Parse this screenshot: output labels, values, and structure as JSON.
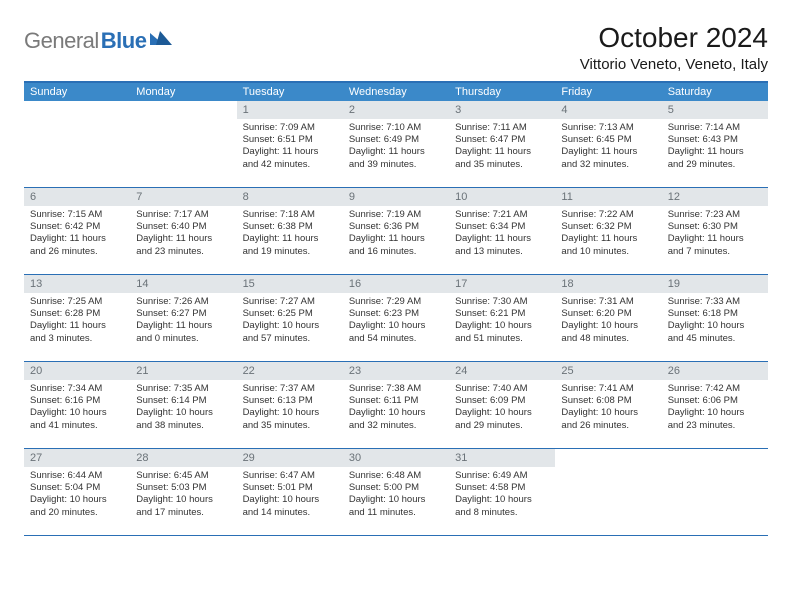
{
  "logo": {
    "gray": "General",
    "blue": "Blue"
  },
  "title": "October 2024",
  "location": "Vittorio Veneto, Veneto, Italy",
  "colors": {
    "accent": "#2a6fb5",
    "header_bg": "#3b89c9",
    "daynum_bg": "#e2e6e9",
    "daynum_fg": "#6a7278",
    "text": "#333333"
  },
  "weekdays": [
    "Sunday",
    "Monday",
    "Tuesday",
    "Wednesday",
    "Thursday",
    "Friday",
    "Saturday"
  ],
  "weeks": [
    [
      null,
      null,
      {
        "n": "1",
        "sunrise": "Sunrise: 7:09 AM",
        "sunset": "Sunset: 6:51 PM",
        "daylight": "Daylight: 11 hours and 42 minutes."
      },
      {
        "n": "2",
        "sunrise": "Sunrise: 7:10 AM",
        "sunset": "Sunset: 6:49 PM",
        "daylight": "Daylight: 11 hours and 39 minutes."
      },
      {
        "n": "3",
        "sunrise": "Sunrise: 7:11 AM",
        "sunset": "Sunset: 6:47 PM",
        "daylight": "Daylight: 11 hours and 35 minutes."
      },
      {
        "n": "4",
        "sunrise": "Sunrise: 7:13 AM",
        "sunset": "Sunset: 6:45 PM",
        "daylight": "Daylight: 11 hours and 32 minutes."
      },
      {
        "n": "5",
        "sunrise": "Sunrise: 7:14 AM",
        "sunset": "Sunset: 6:43 PM",
        "daylight": "Daylight: 11 hours and 29 minutes."
      }
    ],
    [
      {
        "n": "6",
        "sunrise": "Sunrise: 7:15 AM",
        "sunset": "Sunset: 6:42 PM",
        "daylight": "Daylight: 11 hours and 26 minutes."
      },
      {
        "n": "7",
        "sunrise": "Sunrise: 7:17 AM",
        "sunset": "Sunset: 6:40 PM",
        "daylight": "Daylight: 11 hours and 23 minutes."
      },
      {
        "n": "8",
        "sunrise": "Sunrise: 7:18 AM",
        "sunset": "Sunset: 6:38 PM",
        "daylight": "Daylight: 11 hours and 19 minutes."
      },
      {
        "n": "9",
        "sunrise": "Sunrise: 7:19 AM",
        "sunset": "Sunset: 6:36 PM",
        "daylight": "Daylight: 11 hours and 16 minutes."
      },
      {
        "n": "10",
        "sunrise": "Sunrise: 7:21 AM",
        "sunset": "Sunset: 6:34 PM",
        "daylight": "Daylight: 11 hours and 13 minutes."
      },
      {
        "n": "11",
        "sunrise": "Sunrise: 7:22 AM",
        "sunset": "Sunset: 6:32 PM",
        "daylight": "Daylight: 11 hours and 10 minutes."
      },
      {
        "n": "12",
        "sunrise": "Sunrise: 7:23 AM",
        "sunset": "Sunset: 6:30 PM",
        "daylight": "Daylight: 11 hours and 7 minutes."
      }
    ],
    [
      {
        "n": "13",
        "sunrise": "Sunrise: 7:25 AM",
        "sunset": "Sunset: 6:28 PM",
        "daylight": "Daylight: 11 hours and 3 minutes."
      },
      {
        "n": "14",
        "sunrise": "Sunrise: 7:26 AM",
        "sunset": "Sunset: 6:27 PM",
        "daylight": "Daylight: 11 hours and 0 minutes."
      },
      {
        "n": "15",
        "sunrise": "Sunrise: 7:27 AM",
        "sunset": "Sunset: 6:25 PM",
        "daylight": "Daylight: 10 hours and 57 minutes."
      },
      {
        "n": "16",
        "sunrise": "Sunrise: 7:29 AM",
        "sunset": "Sunset: 6:23 PM",
        "daylight": "Daylight: 10 hours and 54 minutes."
      },
      {
        "n": "17",
        "sunrise": "Sunrise: 7:30 AM",
        "sunset": "Sunset: 6:21 PM",
        "daylight": "Daylight: 10 hours and 51 minutes."
      },
      {
        "n": "18",
        "sunrise": "Sunrise: 7:31 AM",
        "sunset": "Sunset: 6:20 PM",
        "daylight": "Daylight: 10 hours and 48 minutes."
      },
      {
        "n": "19",
        "sunrise": "Sunrise: 7:33 AM",
        "sunset": "Sunset: 6:18 PM",
        "daylight": "Daylight: 10 hours and 45 minutes."
      }
    ],
    [
      {
        "n": "20",
        "sunrise": "Sunrise: 7:34 AM",
        "sunset": "Sunset: 6:16 PM",
        "daylight": "Daylight: 10 hours and 41 minutes."
      },
      {
        "n": "21",
        "sunrise": "Sunrise: 7:35 AM",
        "sunset": "Sunset: 6:14 PM",
        "daylight": "Daylight: 10 hours and 38 minutes."
      },
      {
        "n": "22",
        "sunrise": "Sunrise: 7:37 AM",
        "sunset": "Sunset: 6:13 PM",
        "daylight": "Daylight: 10 hours and 35 minutes."
      },
      {
        "n": "23",
        "sunrise": "Sunrise: 7:38 AM",
        "sunset": "Sunset: 6:11 PM",
        "daylight": "Daylight: 10 hours and 32 minutes."
      },
      {
        "n": "24",
        "sunrise": "Sunrise: 7:40 AM",
        "sunset": "Sunset: 6:09 PM",
        "daylight": "Daylight: 10 hours and 29 minutes."
      },
      {
        "n": "25",
        "sunrise": "Sunrise: 7:41 AM",
        "sunset": "Sunset: 6:08 PM",
        "daylight": "Daylight: 10 hours and 26 minutes."
      },
      {
        "n": "26",
        "sunrise": "Sunrise: 7:42 AM",
        "sunset": "Sunset: 6:06 PM",
        "daylight": "Daylight: 10 hours and 23 minutes."
      }
    ],
    [
      {
        "n": "27",
        "sunrise": "Sunrise: 6:44 AM",
        "sunset": "Sunset: 5:04 PM",
        "daylight": "Daylight: 10 hours and 20 minutes."
      },
      {
        "n": "28",
        "sunrise": "Sunrise: 6:45 AM",
        "sunset": "Sunset: 5:03 PM",
        "daylight": "Daylight: 10 hours and 17 minutes."
      },
      {
        "n": "29",
        "sunrise": "Sunrise: 6:47 AM",
        "sunset": "Sunset: 5:01 PM",
        "daylight": "Daylight: 10 hours and 14 minutes."
      },
      {
        "n": "30",
        "sunrise": "Sunrise: 6:48 AM",
        "sunset": "Sunset: 5:00 PM",
        "daylight": "Daylight: 10 hours and 11 minutes."
      },
      {
        "n": "31",
        "sunrise": "Sunrise: 6:49 AM",
        "sunset": "Sunset: 4:58 PM",
        "daylight": "Daylight: 10 hours and 8 minutes."
      },
      null,
      null
    ]
  ]
}
